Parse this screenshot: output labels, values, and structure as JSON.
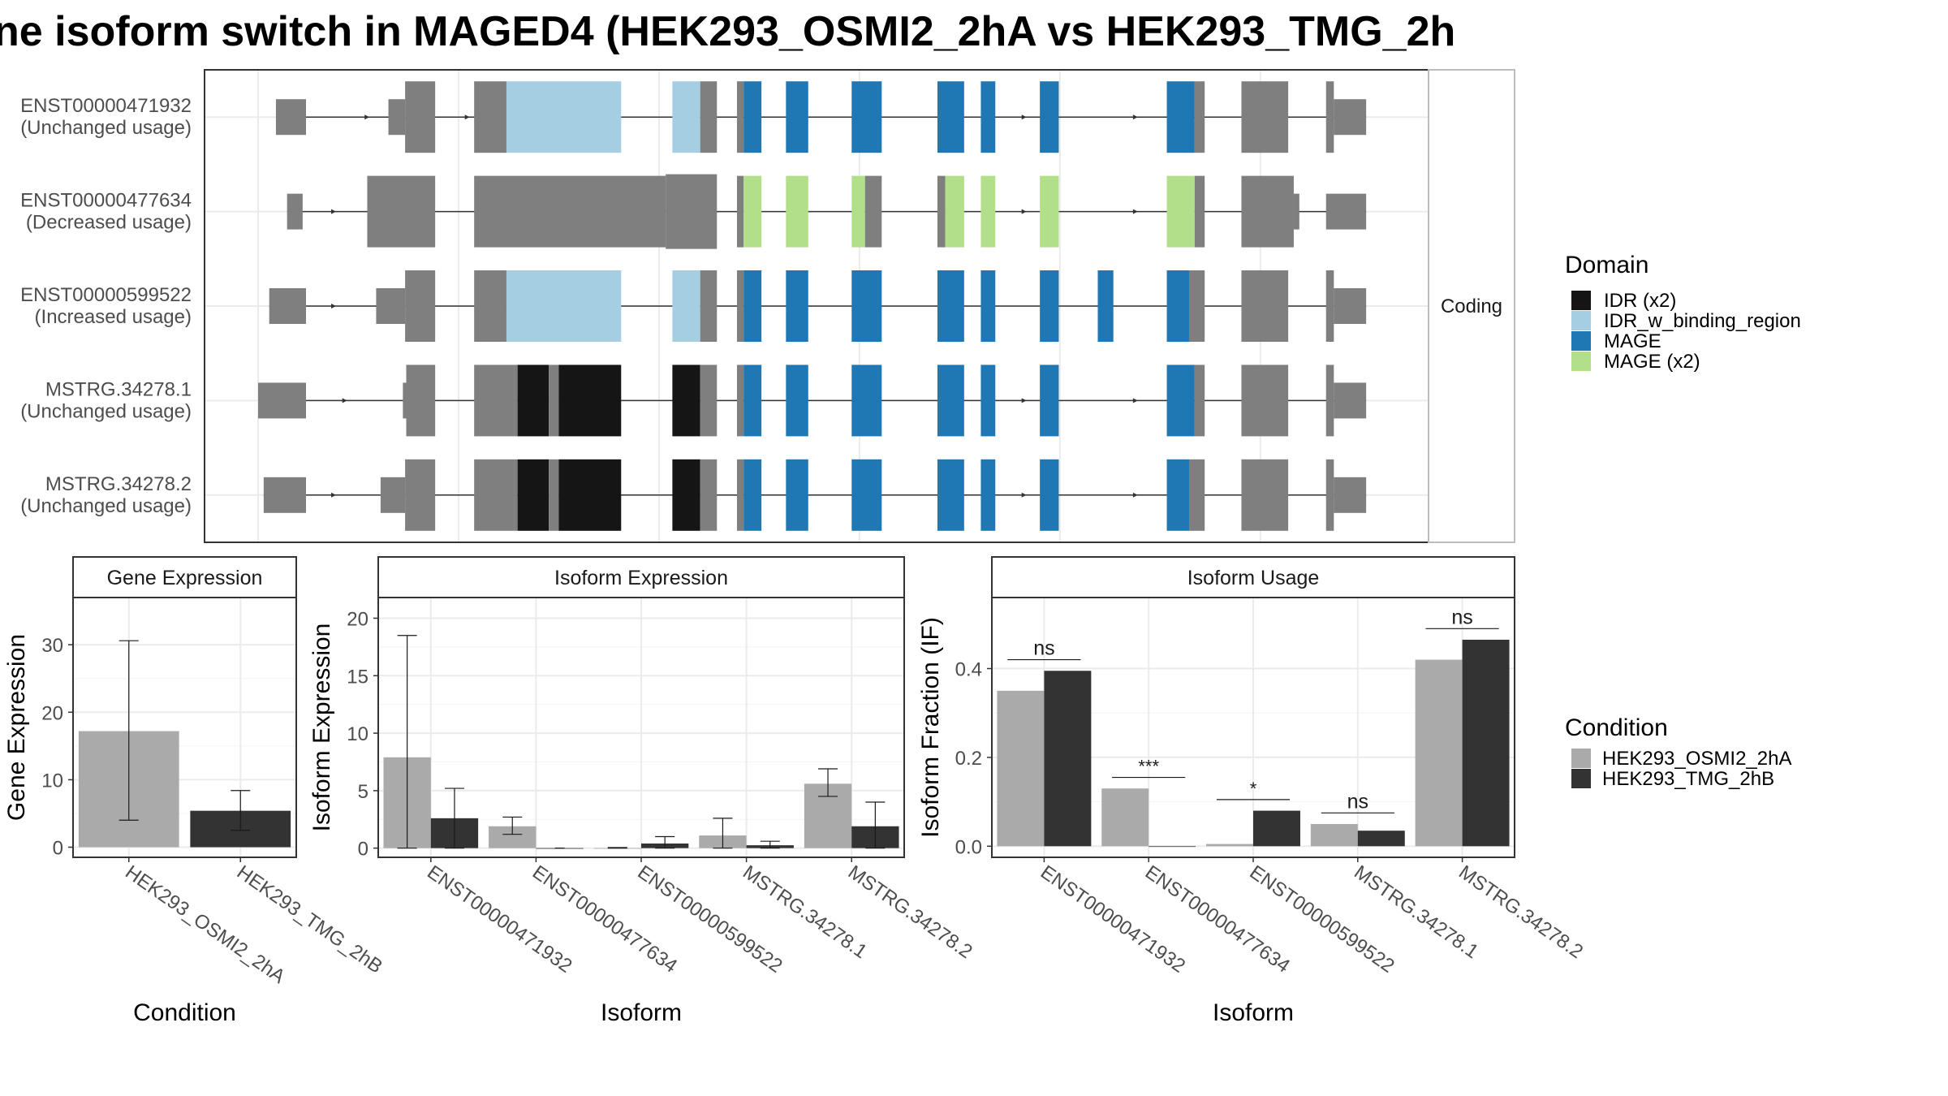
{
  "title": "ne isoform switch in MAGED4 (HEK293_OSMI2_2hA vs HEK293_TMG_2h",
  "colors": {
    "exon": "#7f7f7f",
    "IDR (x2)": "#151515",
    "IDR_w_binding_region": "#a6cee3",
    "MAGE": "#1f78b4",
    "MAGE (x2)": "#b2df8a",
    "cond1": "#aaaaaa",
    "cond2": "#333333",
    "grid": "#ebebeb",
    "border": "#333333",
    "strip": "#ffffff"
  },
  "transcripts": {
    "facet_label": "Coding",
    "legend_title": "Domain",
    "legend_items": [
      "IDR (x2)",
      "IDR_w_binding_region",
      "MAGE",
      "MAGE (x2)"
    ],
    "rows": [
      {
        "id": "ENST00000471932",
        "usage": "(Unchanged usage)",
        "exons": [
          [
            0.016,
            0.043,
            "n"
          ],
          [
            0.117,
            0.132,
            "n"
          ],
          [
            0.132,
            0.159,
            "t"
          ],
          [
            0.194,
            0.223,
            "t"
          ],
          [
            0.223,
            0.326,
            "IDR_w_binding_region"
          ],
          [
            0.372,
            0.397,
            "IDR_w_binding_region"
          ],
          [
            0.397,
            0.412,
            "t"
          ],
          [
            0.43,
            0.436,
            "t"
          ],
          [
            0.436,
            0.452,
            "MAGE"
          ],
          [
            0.474,
            0.494,
            "MAGE"
          ],
          [
            0.533,
            0.56,
            "MAGE"
          ],
          [
            0.61,
            0.634,
            "MAGE"
          ],
          [
            0.649,
            0.662,
            "MAGE"
          ],
          [
            0.702,
            0.719,
            "MAGE"
          ],
          [
            0.816,
            0.841,
            "MAGE"
          ],
          [
            0.841,
            0.85,
            "t"
          ],
          [
            0.883,
            0.925,
            "t"
          ],
          [
            0.959,
            0.966,
            "t"
          ],
          [
            0.966,
            0.995,
            "n"
          ]
        ],
        "arrows": [
          0.1,
          0.19,
          0.69,
          0.79
        ]
      },
      {
        "id": "ENST00000477634",
        "usage": "(Decreased usage)",
        "exons": [
          [
            0.026,
            0.04,
            "n"
          ],
          [
            0.098,
            0.159,
            "t"
          ],
          [
            0.194,
            0.366,
            "t"
          ],
          [
            0.366,
            0.412,
            "w"
          ],
          [
            0.43,
            0.436,
            "t"
          ],
          [
            0.436,
            0.452,
            "MAGE (x2)"
          ],
          [
            0.474,
            0.494,
            "MAGE (x2)"
          ],
          [
            0.533,
            0.545,
            "MAGE (x2)"
          ],
          [
            0.545,
            0.56,
            "t"
          ],
          [
            0.61,
            0.617,
            "t"
          ],
          [
            0.617,
            0.634,
            "MAGE (x2)"
          ],
          [
            0.649,
            0.662,
            "MAGE (x2)"
          ],
          [
            0.702,
            0.719,
            "MAGE (x2)"
          ],
          [
            0.816,
            0.841,
            "MAGE (x2)"
          ],
          [
            0.841,
            0.85,
            "t"
          ],
          [
            0.883,
            0.93,
            "t"
          ],
          [
            0.93,
            0.935,
            "n"
          ],
          [
            0.959,
            0.995,
            "n"
          ]
        ],
        "arrows": [
          0.07,
          0.12,
          0.69,
          0.79
        ]
      },
      {
        "id": "ENST00000599522",
        "usage": "(Increased usage)",
        "exons": [
          [
            0.01,
            0.043,
            "n"
          ],
          [
            0.106,
            0.132,
            "n"
          ],
          [
            0.132,
            0.159,
            "t"
          ],
          [
            0.194,
            0.223,
            "t"
          ],
          [
            0.223,
            0.326,
            "IDR_w_binding_region"
          ],
          [
            0.372,
            0.397,
            "IDR_w_binding_region"
          ],
          [
            0.397,
            0.412,
            "t"
          ],
          [
            0.43,
            0.436,
            "t"
          ],
          [
            0.436,
            0.452,
            "MAGE"
          ],
          [
            0.474,
            0.494,
            "MAGE"
          ],
          [
            0.533,
            0.56,
            "MAGE"
          ],
          [
            0.61,
            0.634,
            "MAGE"
          ],
          [
            0.649,
            0.662,
            "MAGE"
          ],
          [
            0.702,
            0.719,
            "MAGE"
          ],
          [
            0.754,
            0.768,
            "MAGE"
          ],
          [
            0.816,
            0.836,
            "MAGE"
          ],
          [
            0.836,
            0.85,
            "t"
          ],
          [
            0.883,
            0.925,
            "t"
          ],
          [
            0.959,
            0.966,
            "t"
          ],
          [
            0.966,
            0.995,
            "n"
          ]
        ],
        "arrows": [
          0.07,
          0.12
        ]
      },
      {
        "id": "MSTRG.34278.1",
        "usage": "(Unchanged usage)",
        "exons": [
          [
            0.0,
            0.043,
            "n"
          ],
          [
            0.13,
            0.133,
            "n"
          ],
          [
            0.133,
            0.159,
            "t"
          ],
          [
            0.194,
            0.23,
            "t"
          ],
          [
            0.23,
            0.233,
            "t"
          ],
          [
            0.233,
            0.261,
            "IDR (x2)"
          ],
          [
            0.261,
            0.27,
            "t"
          ],
          [
            0.27,
            0.326,
            "IDR (x2)"
          ],
          [
            0.372,
            0.397,
            "IDR (x2)"
          ],
          [
            0.397,
            0.412,
            "t"
          ],
          [
            0.43,
            0.436,
            "t"
          ],
          [
            0.436,
            0.452,
            "MAGE"
          ],
          [
            0.474,
            0.494,
            "MAGE"
          ],
          [
            0.533,
            0.56,
            "MAGE"
          ],
          [
            0.61,
            0.634,
            "MAGE"
          ],
          [
            0.649,
            0.662,
            "MAGE"
          ],
          [
            0.702,
            0.719,
            "MAGE"
          ],
          [
            0.816,
            0.841,
            "MAGE"
          ],
          [
            0.841,
            0.85,
            "t"
          ],
          [
            0.883,
            0.925,
            "t"
          ],
          [
            0.959,
            0.966,
            "t"
          ],
          [
            0.966,
            0.995,
            "n"
          ]
        ],
        "arrows": [
          0.08,
          0.69,
          0.79
        ]
      },
      {
        "id": "MSTRG.34278.2",
        "usage": "(Unchanged usage)",
        "exons": [
          [
            0.005,
            0.043,
            "n"
          ],
          [
            0.11,
            0.132,
            "n"
          ],
          [
            0.132,
            0.159,
            "t"
          ],
          [
            0.194,
            0.23,
            "t"
          ],
          [
            0.23,
            0.233,
            "t"
          ],
          [
            0.233,
            0.261,
            "IDR (x2)"
          ],
          [
            0.261,
            0.27,
            "t"
          ],
          [
            0.27,
            0.326,
            "IDR (x2)"
          ],
          [
            0.372,
            0.397,
            "IDR (x2)"
          ],
          [
            0.397,
            0.412,
            "t"
          ],
          [
            0.43,
            0.436,
            "t"
          ],
          [
            0.436,
            0.452,
            "MAGE"
          ],
          [
            0.474,
            0.494,
            "MAGE"
          ],
          [
            0.533,
            0.56,
            "MAGE"
          ],
          [
            0.61,
            0.634,
            "MAGE"
          ],
          [
            0.649,
            0.662,
            "MAGE"
          ],
          [
            0.702,
            0.719,
            "MAGE"
          ],
          [
            0.816,
            0.836,
            "MAGE"
          ],
          [
            0.836,
            0.85,
            "t"
          ],
          [
            0.883,
            0.925,
            "t"
          ],
          [
            0.959,
            0.966,
            "t"
          ],
          [
            0.966,
            0.995,
            "n"
          ]
        ],
        "arrows": [
          0.07,
          0.12,
          0.69,
          0.79
        ]
      }
    ]
  },
  "chart_data": [
    {
      "type": "bar",
      "title": "Gene Expression",
      "xlabel": "Condition",
      "ylabel": "Gene Expression",
      "ylim": [
        -1.5,
        37
      ],
      "yticks": [
        0,
        10,
        20,
        30
      ],
      "categories": [
        "HEK293_OSMI2_2hA",
        "HEK293_TMG_2hB"
      ],
      "series": [
        {
          "values": [
            17.2,
            5.4
          ],
          "err_low": [
            4.0,
            2.5
          ],
          "err_high": [
            30.6,
            8.4
          ]
        }
      ]
    },
    {
      "type": "bar",
      "title": "Isoform Expression",
      "xlabel": "Isoform",
      "ylabel": "Isoform Expression",
      "ylim": [
        -0.8,
        21.8
      ],
      "yticks": [
        0,
        5,
        10,
        15,
        20
      ],
      "categories": [
        "ENST00000471932",
        "ENST00000477634",
        "ENST00000599522",
        "MSTRG.34278.1",
        "MSTRG.34278.2"
      ],
      "series": [
        {
          "name": "HEK293_OSMI2_2hA",
          "values": [
            7.9,
            1.9,
            0.0,
            1.1,
            5.6
          ],
          "err_low": [
            0.0,
            1.2,
            0.0,
            0.0,
            4.5
          ],
          "err_high": [
            18.5,
            2.7,
            0.05,
            2.6,
            6.9
          ]
        },
        {
          "name": "HEK293_TMG_2hB",
          "values": [
            2.6,
            0.0,
            0.4,
            0.25,
            1.9
          ],
          "err_low": [
            0.0,
            0.0,
            0.0,
            0.0,
            0.0
          ],
          "err_high": [
            5.2,
            0.0,
            1.0,
            0.6,
            4.0
          ]
        }
      ]
    },
    {
      "type": "bar",
      "title": "Isoform Usage",
      "xlabel": "Isoform",
      "ylabel": "Isoform Fraction (IF)",
      "ylim": [
        -0.025,
        0.56
      ],
      "yticks": [
        0.0,
        0.2,
        0.4
      ],
      "ytick_labels": [
        "0.0",
        "0.2",
        "0.4"
      ],
      "categories": [
        "ENST00000471932",
        "ENST00000477634",
        "ENST00000599522",
        "MSTRG.34278.1",
        "MSTRG.34278.2"
      ],
      "series": [
        {
          "name": "HEK293_OSMI2_2hA",
          "values": [
            0.35,
            0.13,
            0.005,
            0.05,
            0.42
          ]
        },
        {
          "name": "HEK293_TMG_2hB",
          "values": [
            0.395,
            0.0,
            0.08,
            0.035,
            0.465
          ]
        }
      ],
      "annotations": [
        {
          "label": "ns",
          "y": 0.42
        },
        {
          "label": "***",
          "y": 0.155
        },
        {
          "label": "*",
          "y": 0.105
        },
        {
          "label": "ns",
          "y": 0.075
        },
        {
          "label": "ns",
          "y": 0.49
        }
      ]
    }
  ],
  "condition_legend": {
    "title": "Condition",
    "items": [
      "HEK293_OSMI2_2hA",
      "HEK293_TMG_2hB"
    ]
  }
}
